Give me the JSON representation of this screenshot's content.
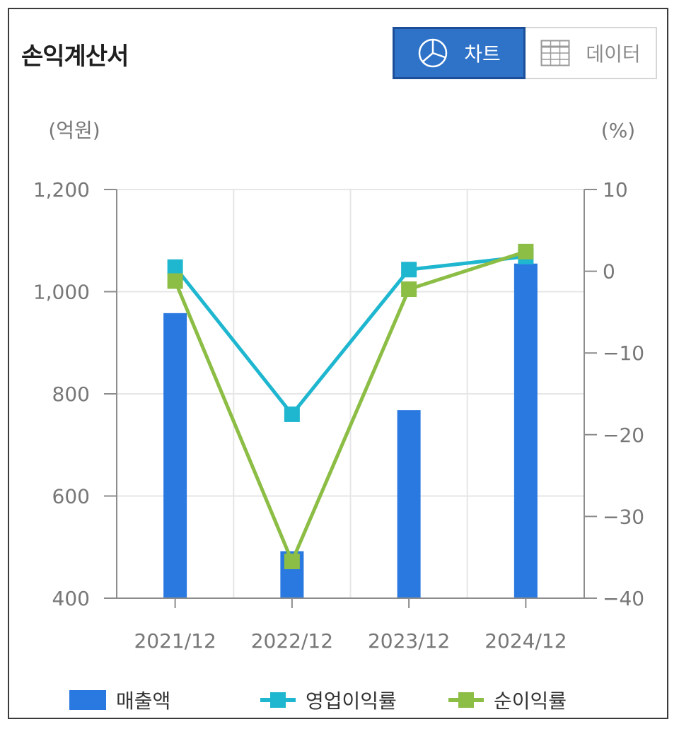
{
  "panel": {
    "title": "손익계산서",
    "toggle": {
      "chart_label": "차트",
      "data_label": "데이터",
      "active": "chart",
      "chart_icon": "pie-chart-icon",
      "data_icon": "table-grid-icon"
    }
  },
  "colors": {
    "bar": "#2a79e0",
    "operating_margin": "#1fb6cf",
    "net_margin": "#8cbd45",
    "toggle_active": "#2f73c9",
    "axis": "#8c8c8c",
    "grid": "#e6e6e6"
  },
  "chart_data": {
    "type": "bar",
    "categories": [
      "2021/12",
      "2022/12",
      "2023/12",
      "2024/12"
    ],
    "y_left": {
      "unit_label": "(억원)",
      "ylim": [
        400,
        1200
      ],
      "ticks": [
        400,
        600,
        800,
        1000,
        1200
      ],
      "tick_labels": [
        "400",
        "600",
        "800",
        "1,000",
        "1,200"
      ]
    },
    "y_right": {
      "unit_label": "(%)",
      "ylim": [
        -40,
        10
      ],
      "ticks": [
        -40,
        -30,
        -20,
        -10,
        0,
        10
      ],
      "tick_labels": [
        "−40",
        "−30",
        "−20",
        "−10",
        "0",
        "10"
      ]
    },
    "grid": true,
    "legend_position": "bottom",
    "series": [
      {
        "name": "매출액",
        "kind": "bar",
        "axis": "left",
        "values": [
          958,
          492,
          768,
          1055
        ]
      },
      {
        "name": "영업이익률",
        "kind": "line",
        "axis": "right",
        "values": [
          0.5,
          -17.5,
          0.2,
          1.8
        ]
      },
      {
        "name": "순이익률",
        "kind": "line",
        "axis": "right",
        "values": [
          -1.2,
          -35.5,
          -2.2,
          2.4
        ]
      }
    ]
  }
}
